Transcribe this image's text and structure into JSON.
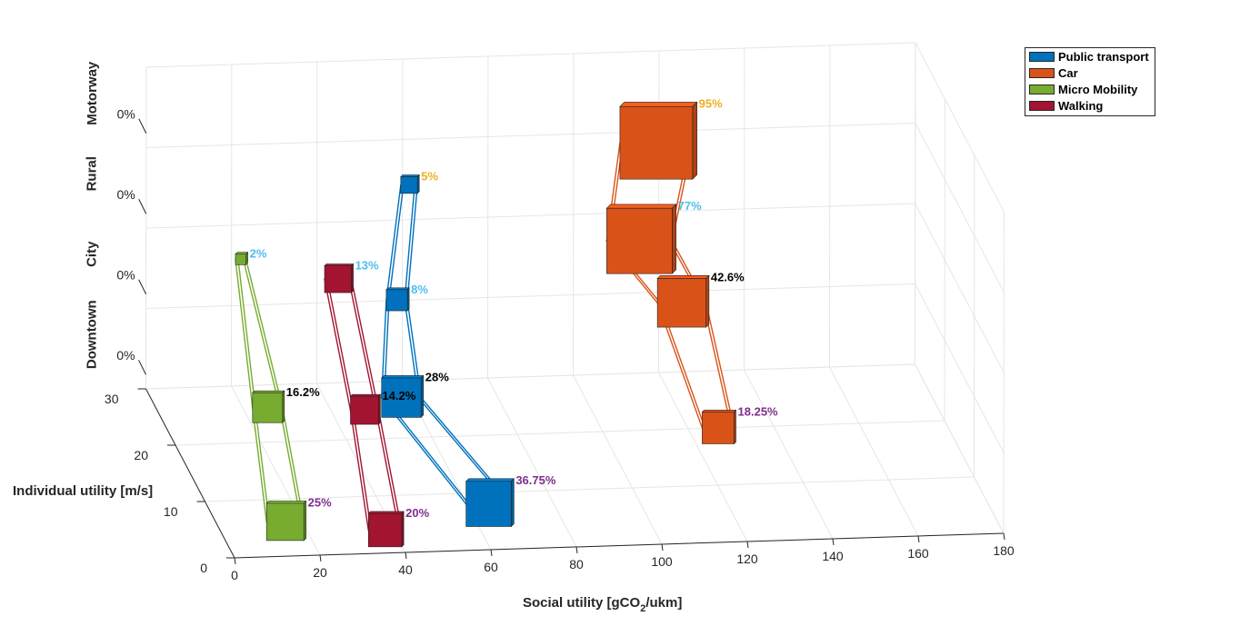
{
  "chart_data": {
    "type": "3d-bar-path",
    "xlabel": "Social utility [gCO",
    "xlabel_sub": "2",
    "xlabel_tail": "/ukm]",
    "ylabel": "Individual utility [m/s]",
    "x_ticks": [
      "0",
      "20",
      "40",
      "60",
      "80",
      "100",
      "120",
      "140",
      "160",
      "180"
    ],
    "y_ticks": [
      "0",
      "10",
      "20",
      "30"
    ],
    "z_categories": [
      "Downtown",
      "City",
      "Rural",
      "Motorway"
    ],
    "z_ticks": [
      "0%",
      "0%",
      "0%",
      "0%"
    ],
    "xlim": [
      0,
      180
    ],
    "ylim": [
      0,
      30
    ],
    "grid": true,
    "legend_position": "top-right",
    "series": [
      {
        "name": "Public transport",
        "color": "#0072BD",
        "label_color": "#4DBEEE",
        "points": [
          {
            "zone": "Downtown",
            "x": 65,
            "y": 8,
            "share": "36.75%"
          },
          {
            "zone": "City",
            "x": 48,
            "y": 13,
            "share": "28%"
          },
          {
            "zone": "Rural",
            "x": 49,
            "y": 16,
            "share": "8%"
          },
          {
            "zone": "Motorway",
            "x": 56,
            "y": 22,
            "share": "5%"
          }
        ]
      },
      {
        "name": "Car",
        "color": "#D95319",
        "label_color": "#EDB120",
        "points": [
          {
            "zone": "Downtown",
            "x": 127,
            "y": 20,
            "share": "18.25%"
          },
          {
            "zone": "City",
            "x": 124,
            "y": 28,
            "share": "42.6%"
          },
          {
            "zone": "Rural",
            "x": 112,
            "y": 25,
            "share": "77%"
          },
          {
            "zone": "Motorway",
            "x": 118,
            "y": 28,
            "share": "95%"
          }
        ]
      },
      {
        "name": "Micro Mobility",
        "color": "#77AC30",
        "label_color": "#7E2F8E",
        "points": [
          {
            "zone": "Downtown",
            "x": 16,
            "y": 6,
            "share": "25%"
          },
          {
            "zone": "City",
            "x": 16,
            "y": 12,
            "share": "16.2%"
          },
          {
            "zone": "Rural",
            "x": 18,
            "y": 24,
            "share": "2%"
          }
        ]
      },
      {
        "name": "Walking",
        "color": "#A2142F",
        "label_color": "#7E2F8E",
        "points": [
          {
            "zone": "Downtown",
            "x": 38,
            "y": 4,
            "share": "20%"
          },
          {
            "zone": "City",
            "x": 38,
            "y": 11,
            "share": "14.2%"
          },
          {
            "zone": "Rural",
            "x": 38,
            "y": 20,
            "share": "13%"
          }
        ]
      }
    ],
    "label_colors": {
      "downtown": "#7E2F8E",
      "city": "#000000",
      "rural": "#4DBEEE",
      "motorway": "#EDB120"
    }
  }
}
